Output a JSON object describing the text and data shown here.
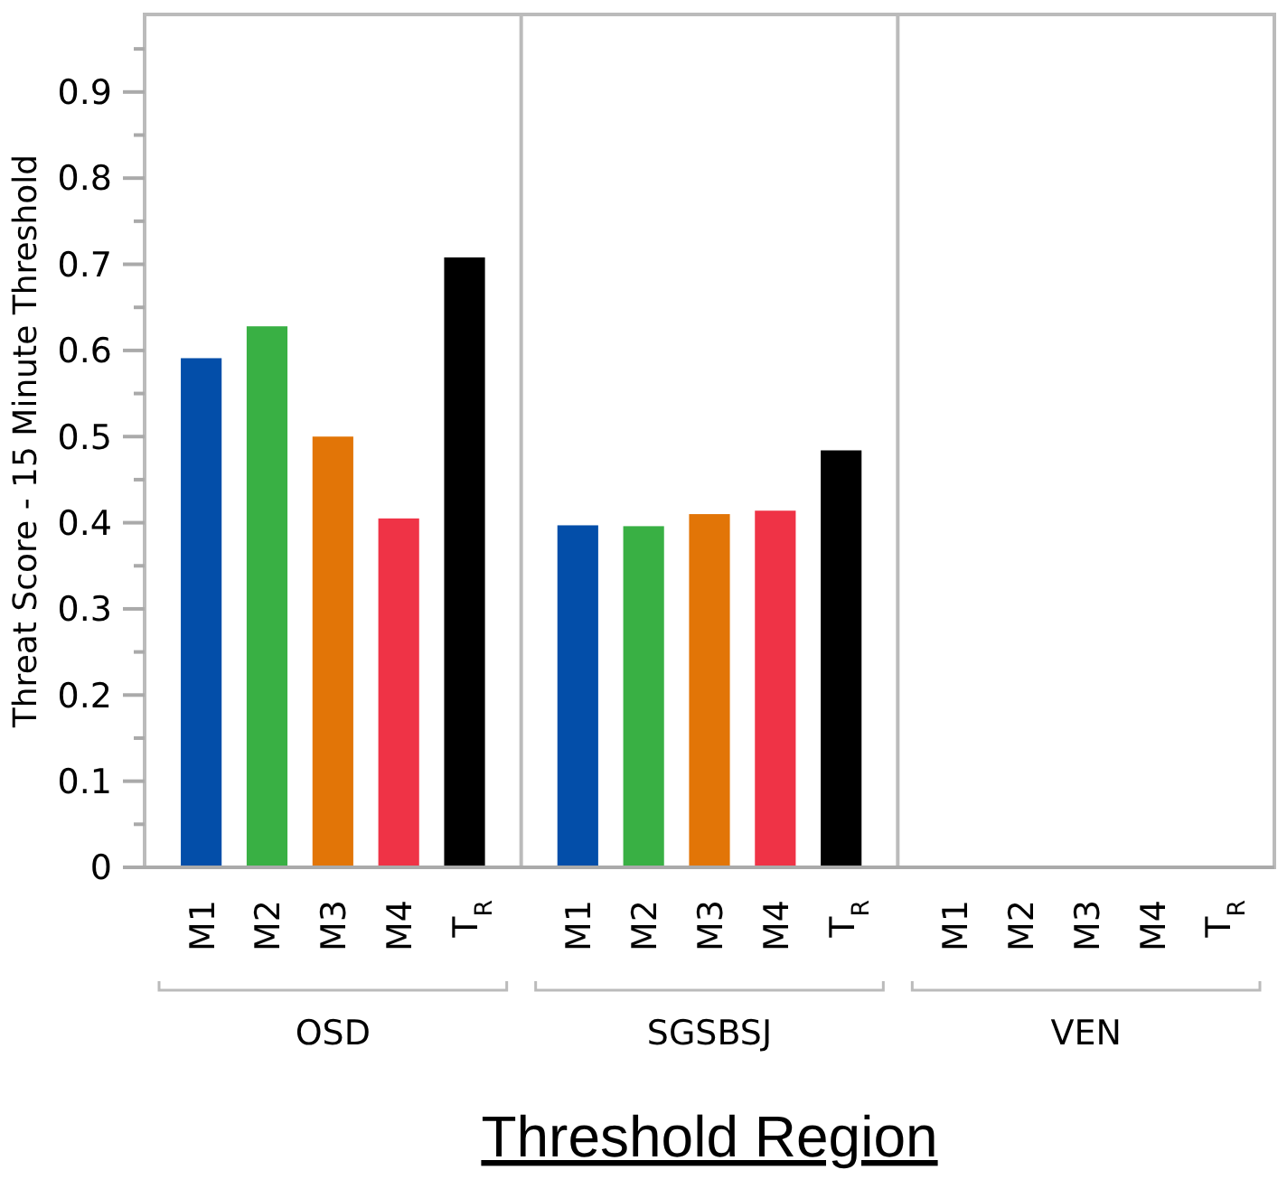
{
  "chart_data": {
    "type": "bar",
    "xlabel": "Threshold Region",
    "ylabel": "Threat Score - 15 Minute Threshold",
    "categories": [
      "OSD",
      "SGSBSJ",
      "VEN"
    ],
    "series": [
      {
        "name": "M1",
        "color": "#034ea9",
        "values": [
          0.591,
          0.397,
          null
        ]
      },
      {
        "name": "M2",
        "color": "#39b044",
        "values": [
          0.628,
          0.396,
          null
        ]
      },
      {
        "name": "M3",
        "color": "#e27507",
        "values": [
          0.5,
          0.41,
          null
        ]
      },
      {
        "name": "M4",
        "color": "#ef3346",
        "values": [
          0.405,
          0.414,
          null
        ]
      },
      {
        "name": "T$_{R}$",
        "color": "#000000",
        "values": [
          0.708,
          0.484,
          null
        ]
      }
    ],
    "ylim": [
      0,
      0.99
    ],
    "yticks": [
      0,
      {
        "value": 0.05,
        "label": null
      },
      0.1,
      {
        "value": 0.15,
        "label": null
      },
      0.2,
      {
        "value": 0.25,
        "label": null
      },
      0.3,
      {
        "value": 0.35,
        "label": null
      },
      0.4,
      {
        "value": 0.45,
        "label": null
      },
      0.5,
      {
        "value": 0.55,
        "label": null
      },
      0.6,
      {
        "value": 0.65,
        "label": null
      },
      0.7,
      {
        "value": 0.75,
        "label": null
      },
      0.8,
      {
        "value": 0.85,
        "label": null
      },
      0.9,
      {
        "value": 0.95,
        "label": null
      }
    ],
    "grid": false
  }
}
